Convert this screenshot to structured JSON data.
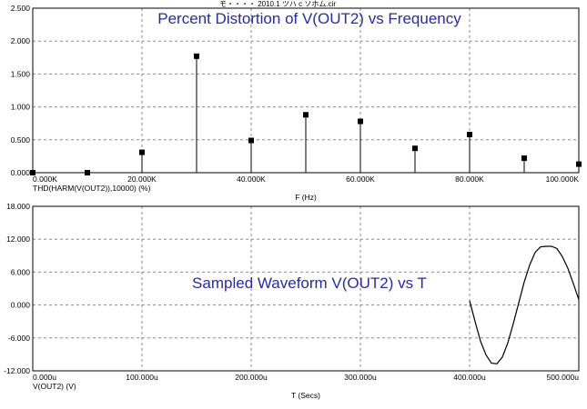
{
  "header_text": "モ・・・・ 2010.1 ツハ  c ソホム.cir",
  "chart_data": [
    {
      "type": "bar",
      "title": "Percent Distortion of V(OUT2) vs Frequency",
      "xlabel": "F (Hz)",
      "trace_label": "THD(HARM(V(OUT2)),10000) (%)",
      "xlim": [
        0,
        100000
      ],
      "ylim": [
        0,
        2.5
      ],
      "xticks": [
        "0.000K",
        "20.000K",
        "40.000K",
        "60.000K",
        "80.000K",
        "100.000K"
      ],
      "yticks": [
        "2.500",
        "2.000",
        "1.500",
        "1.000",
        "0.500",
        "0.000"
      ],
      "x": [
        0,
        10000,
        20000,
        30000,
        40000,
        50000,
        60000,
        70000,
        80000,
        90000,
        100000
      ],
      "values": [
        0.0,
        0.0,
        0.31,
        1.77,
        0.49,
        0.88,
        0.78,
        0.37,
        0.58,
        0.22,
        0.13
      ],
      "grid": true,
      "colors": {
        "frame": "#000000",
        "grid": "#8c8c8c",
        "title": "#2a2aa0"
      }
    },
    {
      "type": "line",
      "title": "Sampled Waveform  V(OUT2) vs T",
      "xlabel": "T (Secs)",
      "trace_label": "V(OUT2) (V)",
      "xlim": [
        0,
        500
      ],
      "ylim": [
        -12,
        18
      ],
      "xticks": [
        "0.000u",
        "100.000u",
        "200.000u",
        "300.000u",
        "400.000u",
        "500.000u"
      ],
      "yticks": [
        "18.000",
        "12.000",
        "6.000",
        "0.000",
        "-6.000",
        "-12.000"
      ],
      "x": [
        400,
        405,
        410,
        415,
        420,
        425,
        430,
        435,
        440,
        445,
        450,
        455,
        460,
        465,
        470,
        475,
        480,
        485,
        490,
        495,
        500
      ],
      "y": [
        0.8,
        -3.0,
        -6.6,
        -9.1,
        -10.6,
        -10.7,
        -9.5,
        -6.9,
        -3.4,
        0.4,
        4.2,
        7.3,
        9.6,
        10.6,
        10.7,
        10.7,
        10.3,
        8.8,
        6.7,
        3.9,
        1.0
      ],
      "grid": true,
      "colors": {
        "frame": "#000000",
        "grid": "#8c8c8c",
        "title": "#2a2aa0"
      }
    }
  ]
}
